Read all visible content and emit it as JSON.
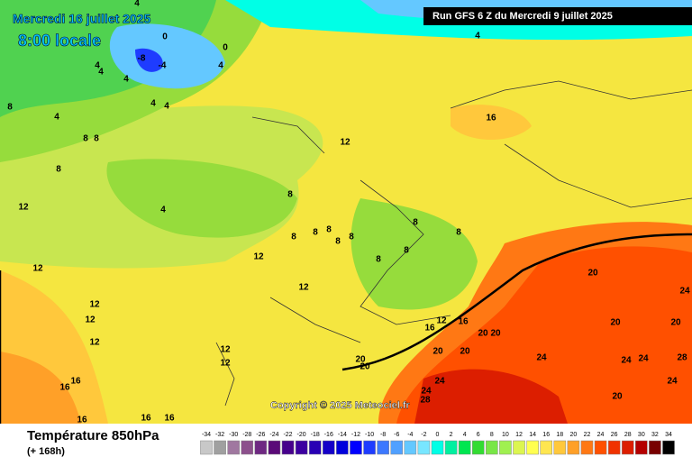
{
  "header": {
    "date": "Mercredi 16 juillet 2025",
    "time": "8:00 locale",
    "run": "Run GFS 6 Z du Mercredi 9 juillet 2025"
  },
  "map": {
    "copyright": "Copyright © 2025 Meteociel.fr",
    "contour_labels": [
      4,
      0,
      0,
      -8,
      -4,
      4,
      4,
      4,
      4,
      4,
      4,
      8,
      4,
      8,
      8,
      8,
      4,
      16,
      12,
      4,
      8,
      8,
      8,
      8,
      8,
      8,
      8,
      8,
      8,
      8,
      12,
      12,
      12,
      12,
      12,
      12,
      12,
      12,
      12,
      12,
      16,
      16,
      20,
      20,
      20,
      20,
      20,
      20,
      20,
      20,
      20,
      24,
      24,
      24,
      24,
      24,
      28,
      28,
      20,
      24,
      24,
      16,
      16,
      16,
      16,
      16
    ]
  },
  "footer": {
    "title": "Température 850hPa",
    "lead": "(+ 168h)"
  },
  "colorbar": {
    "labels": [
      -34,
      -32,
      -30,
      -28,
      -26,
      -24,
      -22,
      -20,
      -18,
      -16,
      -14,
      -12,
      -10,
      -8,
      -6,
      -4,
      -2,
      0,
      2,
      4,
      6,
      8,
      10,
      12,
      14,
      16,
      18,
      20,
      22,
      24,
      26,
      28,
      30,
      32,
      34
    ],
    "colors": [
      "#c8c8c8",
      "#a0a0a0",
      "#a078a0",
      "#8c508c",
      "#6e2882",
      "#5a0a78",
      "#46008c",
      "#3c00a0",
      "#2800b4",
      "#1400c8",
      "#0000dc",
      "#0000ff",
      "#1e3cff",
      "#3c78ff",
      "#50a0ff",
      "#64c8ff",
      "#78e6ff",
      "#00ffe6",
      "#00f0a0",
      "#00e650",
      "#32dc32",
      "#78e646",
      "#a0f050",
      "#dcf550",
      "#ffff50",
      "#ffe650",
      "#ffc83c",
      "#ffa028",
      "#ff7814",
      "#ff5000",
      "#f03200",
      "#dc1e00",
      "#b40000",
      "#780000",
      "#000000"
    ]
  }
}
